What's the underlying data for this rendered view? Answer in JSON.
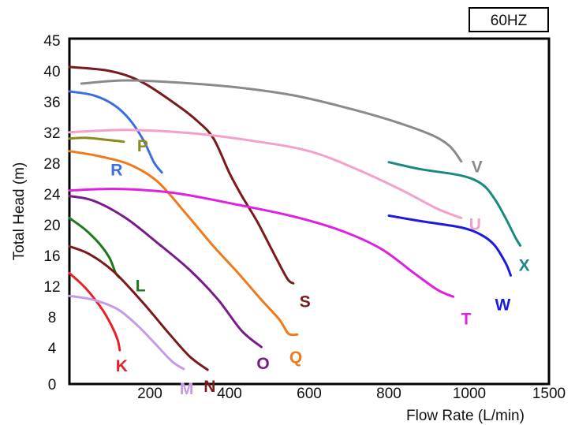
{
  "chart_data": {
    "type": "line",
    "title": "",
    "badge": "60HZ",
    "xlabel": "Flow Rate (L/min)",
    "ylabel": "Total Head (m)",
    "x_ticks": [
      "200",
      "400",
      "600",
      "800",
      "1000",
      "1500"
    ],
    "y_ticks": [
      "0",
      "4",
      "8",
      "12",
      "16",
      "20",
      "24",
      "28",
      "32",
      "36",
      "40",
      "45"
    ],
    "ylim": [
      0,
      45
    ],
    "grid": false,
    "series": [
      {
        "name": "K",
        "color": "#e8202a",
        "points": [
          [
            0,
            14.1
          ],
          [
            40,
            12.2
          ],
          [
            80,
            9.6
          ],
          [
            105,
            7.4
          ],
          [
            120,
            5.6
          ],
          [
            125,
            4.3
          ]
        ]
      },
      {
        "name": "L",
        "color": "#1b7a1b",
        "points": [
          [
            0,
            21.1
          ],
          [
            40,
            19.6
          ],
          [
            75,
            17.8
          ],
          [
            100,
            16
          ],
          [
            115,
            14.1
          ],
          [
            125,
            13.5
          ]
        ]
      },
      {
        "name": "M",
        "color": "#c79ae6",
        "points": [
          [
            0,
            11.2
          ],
          [
            60,
            10.7
          ],
          [
            120,
            9.5
          ],
          [
            170,
            7.4
          ],
          [
            210,
            5.3
          ],
          [
            255,
            2.9
          ],
          [
            285,
            1.9
          ]
        ]
      },
      {
        "name": "N",
        "color": "#7a1a1a",
        "points": [
          [
            0,
            17.5
          ],
          [
            50,
            16.5
          ],
          [
            110,
            14.3
          ],
          [
            180,
            10.5
          ],
          [
            250,
            6.3
          ],
          [
            300,
            3.5
          ],
          [
            345,
            1.8
          ]
        ]
      },
      {
        "name": "O",
        "color": "#7a1a8a",
        "points": [
          [
            0,
            23.9
          ],
          [
            60,
            23.3
          ],
          [
            140,
            21.1
          ],
          [
            220,
            17.9
          ],
          [
            300,
            14.5
          ],
          [
            370,
            10.8
          ],
          [
            430,
            6.8
          ],
          [
            480,
            4.7
          ]
        ]
      },
      {
        "name": "P",
        "color": "#8a8a1c",
        "points": [
          [
            0,
            31.2
          ],
          [
            40,
            31.3
          ],
          [
            100,
            31
          ],
          [
            135,
            30.8
          ]
        ]
      },
      {
        "name": "Q",
        "color": "#f07a1a",
        "points": [
          [
            0,
            29.6
          ],
          [
            70,
            29
          ],
          [
            150,
            27.9
          ],
          [
            220,
            25.7
          ],
          [
            290,
            21.7
          ],
          [
            360,
            17.5
          ],
          [
            420,
            14.2
          ],
          [
            480,
            10.7
          ],
          [
            525,
            8.2
          ],
          [
            548,
            6.4
          ],
          [
            570,
            6.3
          ]
        ]
      },
      {
        "name": "R",
        "color": "#3a6ee0",
        "points": [
          [
            0,
            37.2
          ],
          [
            60,
            36.7
          ],
          [
            110,
            35.5
          ],
          [
            150,
            33.6
          ],
          [
            185,
            30.9
          ],
          [
            210,
            28.2
          ],
          [
            230,
            26.9
          ]
        ]
      },
      {
        "name": "S",
        "color": "#7a1a1a",
        "points": [
          [
            0,
            40.4
          ],
          [
            100,
            39.8
          ],
          [
            180,
            38.4
          ],
          [
            270,
            35.4
          ],
          [
            320,
            33.4
          ],
          [
            360,
            31.2
          ],
          [
            400,
            26.8
          ],
          [
            430,
            24
          ],
          [
            470,
            20.6
          ],
          [
            510,
            16.7
          ],
          [
            545,
            13.4
          ],
          [
            560,
            12.8
          ]
        ]
      },
      {
        "name": "T",
        "color": "#e020e0",
        "points": [
          [
            0,
            24.6
          ],
          [
            120,
            24.8
          ],
          [
            260,
            24.3
          ],
          [
            420,
            22.8
          ],
          [
            560,
            21.3
          ],
          [
            680,
            19.5
          ],
          [
            780,
            17.2
          ],
          [
            860,
            14.2
          ],
          [
            920,
            12
          ],
          [
            960,
            11.1
          ]
        ]
      },
      {
        "name": "U",
        "color": "#f2a0cc",
        "points": [
          [
            0,
            32
          ],
          [
            140,
            32.3
          ],
          [
            300,
            31.9
          ],
          [
            460,
            30.9
          ],
          [
            600,
            29.6
          ],
          [
            720,
            27.3
          ],
          [
            830,
            24.7
          ],
          [
            920,
            22.3
          ],
          [
            980,
            21.1
          ]
        ]
      },
      {
        "name": "V",
        "color": "#8a8a8a",
        "points": [
          [
            30,
            38.2
          ],
          [
            140,
            38.6
          ],
          [
            280,
            38.3
          ],
          [
            420,
            37.7
          ],
          [
            560,
            36.7
          ],
          [
            680,
            35.3
          ],
          [
            800,
            33.6
          ],
          [
            900,
            31.8
          ],
          [
            950,
            30.3
          ],
          [
            980,
            28.3
          ]
        ]
      },
      {
        "name": "W",
        "color": "#1a1ae0",
        "points": [
          [
            800,
            21.4
          ],
          [
            880,
            20.7
          ],
          [
            980,
            19.9
          ],
          [
            1080,
            18.9
          ],
          [
            1160,
            17.6
          ],
          [
            1230,
            15.3
          ],
          [
            1260,
            13.8
          ]
        ]
      },
      {
        "name": "X",
        "color": "#1a8a80",
        "points": [
          [
            800,
            28.2
          ],
          [
            880,
            27.3
          ],
          [
            980,
            26.5
          ],
          [
            1080,
            25.4
          ],
          [
            1160,
            23.5
          ],
          [
            1230,
            21
          ],
          [
            1290,
            18.6
          ],
          [
            1320,
            17.6
          ]
        ]
      }
    ]
  }
}
